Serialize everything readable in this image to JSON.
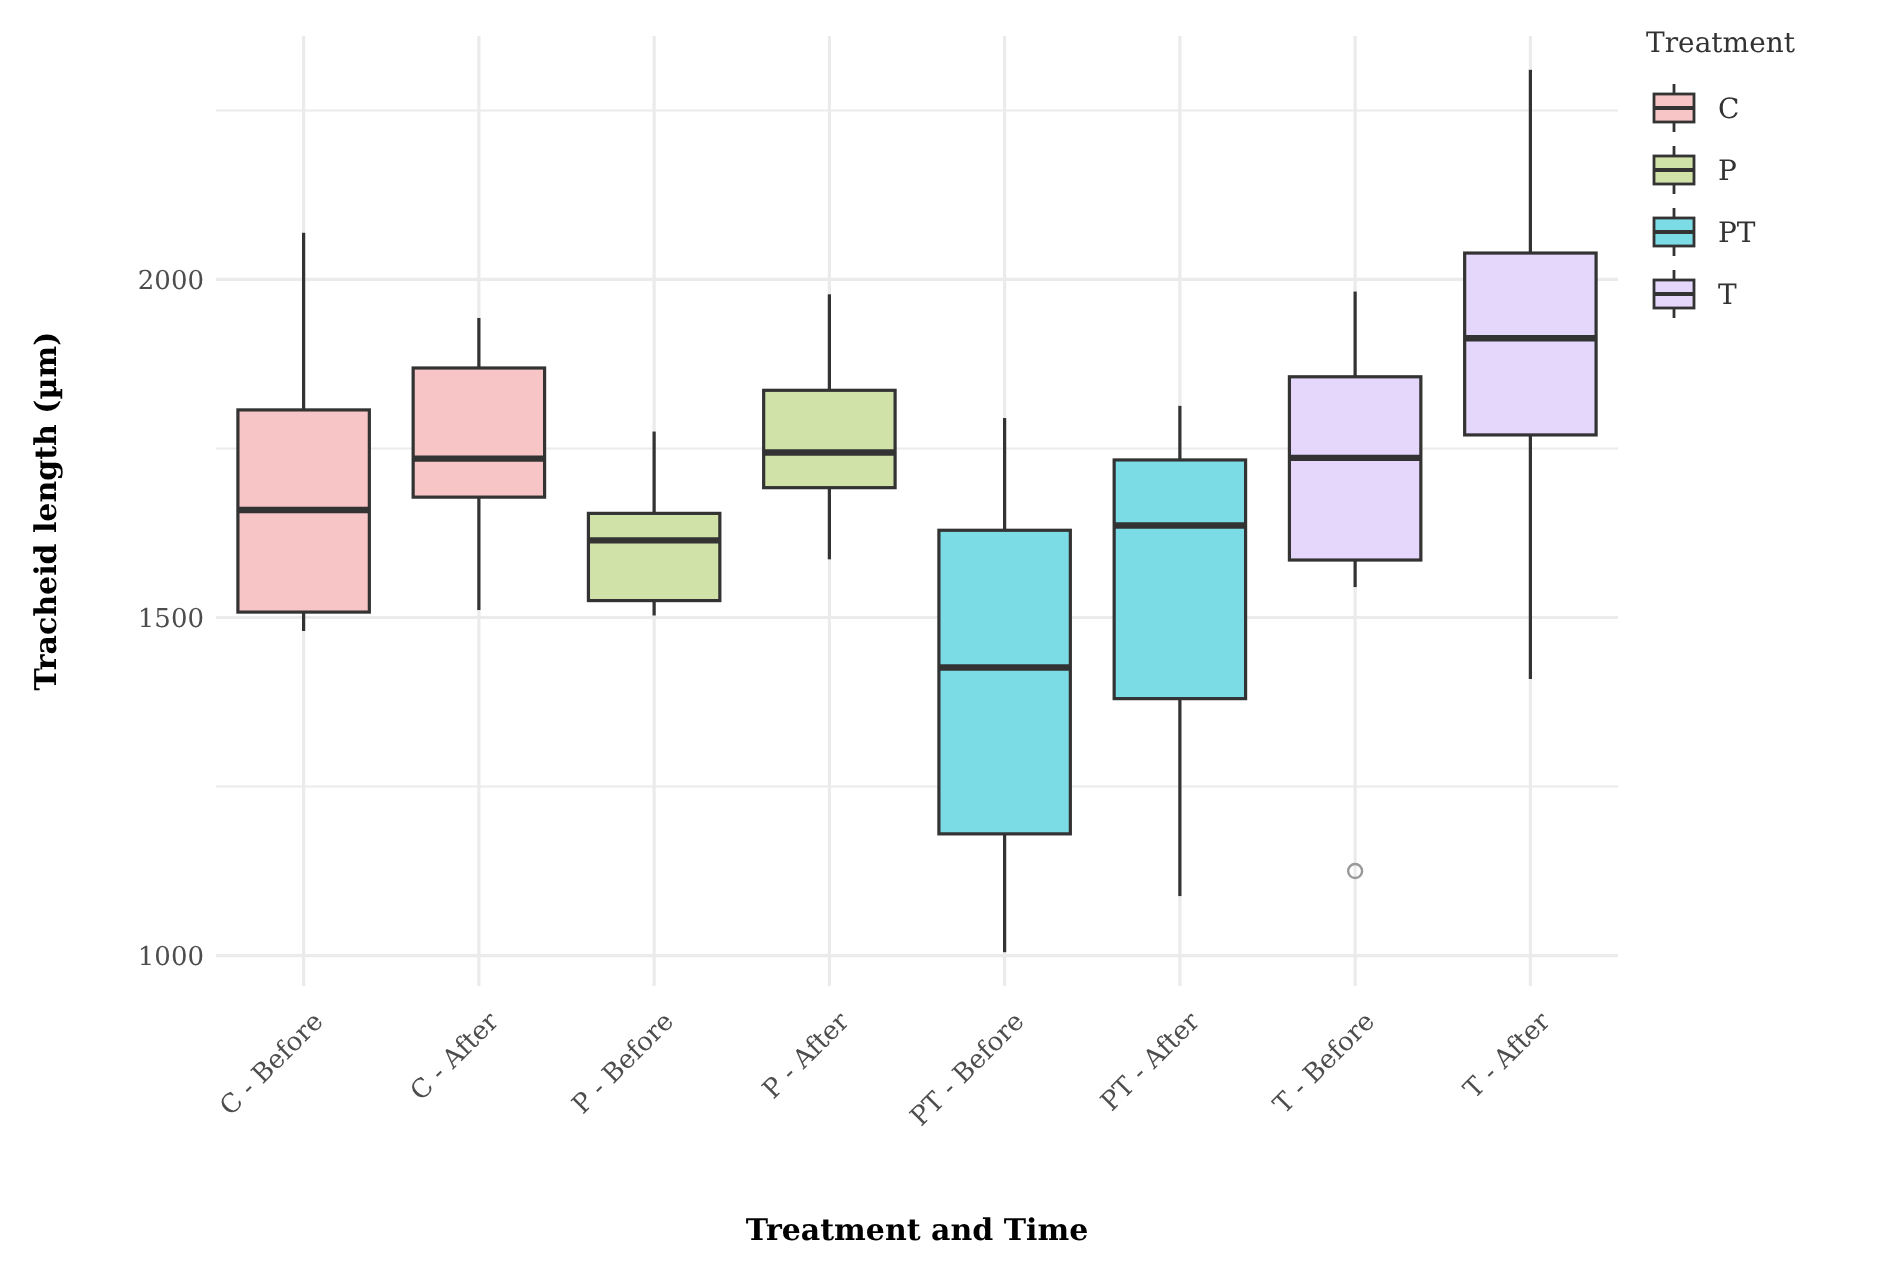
{
  "chart_data": {
    "type": "box",
    "xlabel": "Treatment and Time",
    "ylabel": "Tracheid length (µm)",
    "legend_title": "Treatment",
    "legend": "right",
    "grid": true,
    "categories": [
      "C - Before",
      "C - After",
      "P - Before",
      "P - After",
      "PT - Before",
      "PT - After",
      "T - Before",
      "T - After"
    ],
    "ylim": [
      955,
      2360
    ],
    "yticks": [
      1000,
      {
        "value": 1250,
        "label": null
      },
      1500,
      {
        "value": 1750,
        "label": null
      },
      2000,
      {
        "value": 2250,
        "label": null
      }
    ],
    "series": [
      {
        "name": "C",
        "color": "#f7c5c5",
        "boxes": [
          {
            "low": 1480,
            "q1": 1508,
            "median": 1659,
            "q3": 1807,
            "high": 2069
          },
          {
            "low": 1511,
            "q1": 1678,
            "median": 1735,
            "q3": 1869,
            "high": 1943
          },
          null,
          null,
          null,
          null,
          null,
          null
        ]
      },
      {
        "name": "P",
        "color": "#d1e2a9",
        "boxes": [
          null,
          null,
          {
            "low": 1503,
            "q1": 1525,
            "median": 1614,
            "q3": 1654,
            "high": 1775
          },
          {
            "low": 1586,
            "q1": 1692,
            "median": 1744,
            "q3": 1836,
            "high": 1978
          },
          null,
          null,
          null,
          null
        ]
      },
      {
        "name": "PT",
        "color": "#7cdce6",
        "boxes": [
          null,
          null,
          null,
          null,
          {
            "low": 1005,
            "q1": 1180,
            "median": 1426,
            "q3": 1629,
            "high": 1795
          },
          {
            "low": 1088,
            "q1": 1380,
            "median": 1636,
            "q3": 1733,
            "high": 1813
          },
          null,
          null
        ]
      },
      {
        "name": "T",
        "color": "#e5d6fb",
        "boxes": [
          null,
          null,
          null,
          null,
          null,
          null,
          {
            "low": 1545,
            "q1": 1585,
            "median": 1736,
            "q3": 1856,
            "high": 1982,
            "outliers": [
              1125
            ]
          },
          {
            "low": 1409,
            "q1": 1770,
            "median": 1913,
            "q3": 2039,
            "high": 2310
          }
        ]
      }
    ]
  }
}
